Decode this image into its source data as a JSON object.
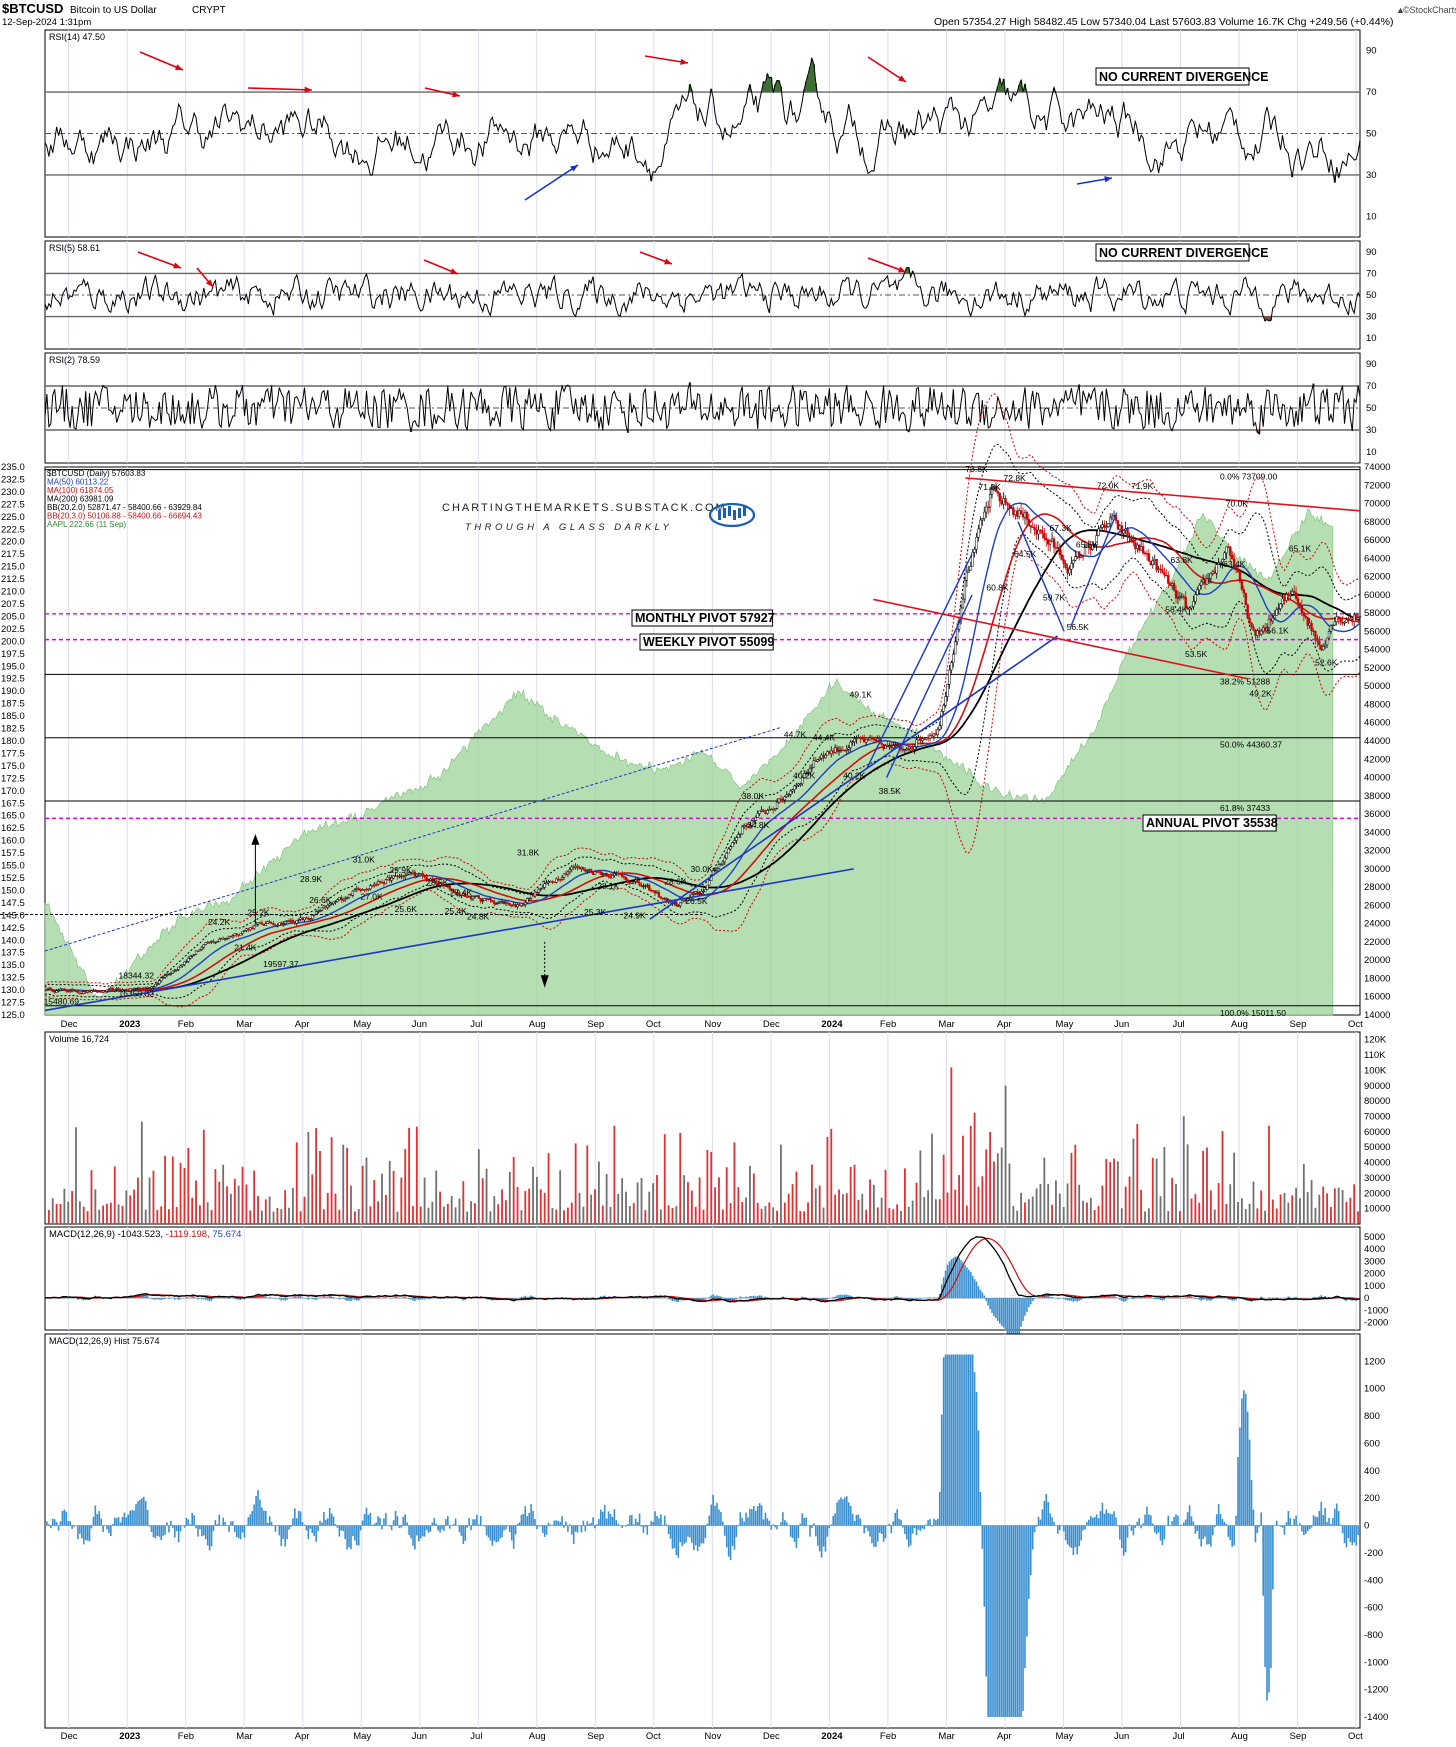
{
  "header": {
    "symbol": "$BTCUSD",
    "name": "Bitcoin to US Dollar",
    "exchange": "CRYPT",
    "datetime": "12-Sep-2024 1:31pm",
    "quote": "Open 57354.27  High 58482.45  Low 57340.04  Last 57603.83  Volume 16.7K  Chg +249.56 (+0.44%)",
    "quote_arrow": "▲",
    "brand": "©StockCharts.com"
  },
  "watermark": {
    "line1": "CHARTINGTHEMARKETS.SUBSTACK.COM",
    "line2": "THROUGH A GLASS DARKLY"
  },
  "colors": {
    "rsi_up_fill": "#3d6e34",
    "rsi_dn_fill": "#8c4a3e",
    "ma50": "#1f3fbf",
    "ma100": "#d01010",
    "ma200": "#000000",
    "aapl_area": "#9ed39a",
    "pivot": "#e000e0",
    "channel": "#e0101a",
    "trend_blue": "#1a36c8",
    "vol_up": "#e03030",
    "vol_dn": "#707070",
    "macd_hist": "#3a8fd0"
  },
  "panels": {
    "rsi14": {
      "label": "RSI(14) 47.50",
      "levels": [
        90,
        70,
        50,
        30,
        10
      ],
      "callout": "NO CURRENT DIVERGENCE"
    },
    "rsi5": {
      "label": "RSI(5) 58.61",
      "levels": [
        90,
        70,
        50,
        30,
        10
      ],
      "callout": "NO CURRENT DIVERGENCE"
    },
    "rsi2": {
      "label": "RSI(2) 78.59",
      "levels": [
        90,
        70,
        50,
        30,
        10
      ]
    },
    "price": {
      "legend": [
        {
          "text": "$BTCUSD (Daily) 57603.83",
          "color": "#000000"
        },
        {
          "text": "MA(50) 60113.22",
          "color": "#1f3fbf"
        },
        {
          "text": "MA(100) 61874.05",
          "color": "#d01010"
        },
        {
          "text": "MA(200) 63981.09",
          "color": "#000000"
        },
        {
          "text": "BB(20,2.0) 52871.47 - 58400.66 - 63929.84",
          "color": "#000000"
        },
        {
          "text": "BB(20,3.0) 50106.88 - 58400.66 - 66694.43",
          "color": "#d01010"
        },
        {
          "text": "AAPL 222.66 (11 Sep)",
          "color": "#2e8b2e"
        }
      ],
      "left_axis": [
        "235.0",
        "232.5",
        "230.0",
        "227.5",
        "225.0",
        "222.5",
        "220.0",
        "217.5",
        "215.0",
        "212.5",
        "210.0",
        "207.5",
        "205.0",
        "202.5",
        "200.0",
        "197.5",
        "195.0",
        "192.5",
        "190.0",
        "187.5",
        "185.0",
        "182.5",
        "180.0",
        "177.5",
        "175.0",
        "172.5",
        "170.0",
        "167.5",
        "165.0",
        "162.5",
        "160.0",
        "157.5",
        "155.0",
        "152.5",
        "150.0",
        "147.5",
        "145.0",
        "142.5",
        "140.0",
        "137.5",
        "135.0",
        "132.5",
        "130.0",
        "127.5",
        "125.0"
      ],
      "right_axis": [
        "74000",
        "72000",
        "70000",
        "68000",
        "66000",
        "64000",
        "62000",
        "60000",
        "58000",
        "56000",
        "54000",
        "52000",
        "50000",
        "48000",
        "46000",
        "44000",
        "42000",
        "40000",
        "38000",
        "36000",
        "34000",
        "32000",
        "30000",
        "28000",
        "26000",
        "24000",
        "22000",
        "20000",
        "18000",
        "16000",
        "14000"
      ],
      "pivots": [
        {
          "label": "MONTHLY PIVOT 57927",
          "value": 57927
        },
        {
          "label": "WEEKLY PIVOT 55099",
          "value": 55099
        },
        {
          "label": "ANNUAL PIVOT 35538",
          "value": 35538
        }
      ],
      "fibs": [
        {
          "label": "0.0% 73709.00",
          "value": 73709
        },
        {
          "label": "38.2% 51288",
          "value": 51288
        },
        {
          "label": "50.0% 44360.37",
          "value": 44360
        },
        {
          "label": "61.8% 37433",
          "value": 37433
        },
        {
          "label": "100.0% 15011.50",
          "value": 15011
        }
      ],
      "point_labels": [
        {
          "text": "73.8K",
          "t": 0.706,
          "v": 73800
        },
        {
          "text": "71.8K",
          "t": 0.716,
          "v": 71800
        },
        {
          "text": "72.8K",
          "t": 0.735,
          "v": 72800
        },
        {
          "text": "72.0K",
          "t": 0.806,
          "v": 72000
        },
        {
          "text": "71.9K",
          "t": 0.832,
          "v": 71900
        },
        {
          "text": "70.0K",
          "t": 0.904,
          "v": 70000
        },
        {
          "text": "67.3K",
          "t": 0.77,
          "v": 67300
        },
        {
          "text": "65.5K",
          "t": 0.79,
          "v": 65500
        },
        {
          "text": "64.5K",
          "t": 0.743,
          "v": 64500
        },
        {
          "text": "63.8K",
          "t": 0.862,
          "v": 63800
        },
        {
          "text": "63.4K",
          "t": 0.902,
          "v": 63400
        },
        {
          "text": "65.1K",
          "t": 0.952,
          "v": 65100
        },
        {
          "text": "60.8K",
          "t": 0.722,
          "v": 60800
        },
        {
          "text": "59.7K",
          "t": 0.765,
          "v": 59700
        },
        {
          "text": "58.4K",
          "t": 0.858,
          "v": 58400
        },
        {
          "text": "56.5K",
          "t": 0.783,
          "v": 56500
        },
        {
          "text": "56.1K",
          "t": 0.935,
          "v": 56100
        },
        {
          "text": "53.5K",
          "t": 0.873,
          "v": 53500
        },
        {
          "text": "52.6K",
          "t": 0.972,
          "v": 52600
        },
        {
          "text": "49.2K",
          "t": 0.922,
          "v": 49200
        },
        {
          "text": "49.1K",
          "t": 0.618,
          "v": 49100
        },
        {
          "text": "44.7K",
          "t": 0.568,
          "v": 44700
        },
        {
          "text": "44.4K",
          "t": 0.59,
          "v": 44400
        },
        {
          "text": "40.2K",
          "t": 0.575,
          "v": 40200
        },
        {
          "text": "40.2K",
          "t": 0.613,
          "v": 40200
        },
        {
          "text": "38.0K",
          "t": 0.536,
          "v": 38000
        },
        {
          "text": "38.5K",
          "t": 0.64,
          "v": 38500
        },
        {
          "text": "34.8K",
          "t": 0.54,
          "v": 34800
        },
        {
          "text": "31.8K",
          "t": 0.365,
          "v": 31800
        },
        {
          "text": "31.0K",
          "t": 0.24,
          "v": 31000
        },
        {
          "text": "30.0K",
          "t": 0.497,
          "v": 30000
        },
        {
          "text": "29.9K",
          "t": 0.268,
          "v": 29900
        },
        {
          "text": "28.9K",
          "t": 0.2,
          "v": 28900
        },
        {
          "text": "28.6K",
          "t": 0.477,
          "v": 28600
        },
        {
          "text": "28.5K",
          "t": 0.296,
          "v": 28500
        },
        {
          "text": "28.1K",
          "t": 0.426,
          "v": 28100
        },
        {
          "text": "27.4K",
          "t": 0.314,
          "v": 27400
        },
        {
          "text": "27.0K",
          "t": 0.246,
          "v": 27000
        },
        {
          "text": "26.6K",
          "t": 0.207,
          "v": 26600
        },
        {
          "text": "26.5K",
          "t": 0.493,
          "v": 26500
        },
        {
          "text": "25.6K",
          "t": 0.272,
          "v": 25600
        },
        {
          "text": "25.4K",
          "t": 0.31,
          "v": 25400
        },
        {
          "text": "25.3K",
          "t": 0.416,
          "v": 25300
        },
        {
          "text": "25.2K",
          "t": 0.16,
          "v": 25200
        },
        {
          "text": "24.9K",
          "t": 0.446,
          "v": 24900
        },
        {
          "text": "24.8K",
          "t": 0.327,
          "v": 24800
        },
        {
          "text": "24.2K",
          "t": 0.13,
          "v": 24200
        },
        {
          "text": "21.4K",
          "t": 0.15,
          "v": 21400
        },
        {
          "text": "19597.37",
          "t": 0.172,
          "v": 19600
        },
        {
          "text": "18344.32",
          "t": 0.062,
          "v": 18344
        },
        {
          "text": "16350.32",
          "t": 0.062,
          "v": 16350
        },
        {
          "text": "15480.69",
          "t": 0.005,
          "v": 15480
        }
      ]
    },
    "volume": {
      "label": "Volume 16,724",
      "axis": [
        "120K",
        "110K",
        "100K",
        "90000",
        "80000",
        "70000",
        "60000",
        "50000",
        "40000",
        "30000",
        "20000",
        "10000"
      ]
    },
    "macd": {
      "label_prefix": "MACD(12,26,9)",
      "macd_val": "-1043.523",
      "signal_val": "-1119.198",
      "hist_val": "75.674",
      "axis": [
        "5000",
        "4000",
        "3000",
        "2000",
        "1000",
        "0",
        "-1000",
        "-2000"
      ]
    },
    "hist": {
      "label": "MACD(12,26,9) Hist 75.674",
      "axis": [
        "1200",
        "1000",
        "800",
        "600",
        "400",
        "200",
        "0",
        "-200",
        "-400",
        "-600",
        "-800",
        "-1000",
        "-1200",
        "-1400"
      ]
    }
  },
  "x_axis": [
    "Dec",
    "2023",
    "Feb",
    "Mar",
    "Apr",
    "May",
    "Jun",
    "Jul",
    "Aug",
    "Sep",
    "Oct",
    "Nov",
    "Dec",
    "2024",
    "Feb",
    "Mar",
    "Apr",
    "May",
    "Jun",
    "Jul",
    "Aug",
    "Sep",
    "Oct"
  ],
  "chart_data": {
    "type": "line",
    "title": "$BTCUSD (Daily)",
    "x_range": [
      "Nov 2022",
      "Oct 2024"
    ],
    "y_right_range": [
      14000,
      74000
    ],
    "y_left_range": [
      125,
      235
    ],
    "series": [
      {
        "name": "$BTCUSD (Daily)",
        "t": [
          0.0,
          0.04,
          0.08,
          0.12,
          0.16,
          0.2,
          0.24,
          0.28,
          0.32,
          0.36,
          0.4,
          0.44,
          0.48,
          0.5,
          0.53,
          0.56,
          0.59,
          0.62,
          0.65,
          0.68,
          0.7,
          0.72,
          0.75,
          0.78,
          0.81,
          0.84,
          0.87,
          0.9,
          0.92,
          0.95,
          0.97,
          0.98
        ],
        "values": [
          16800,
          16500,
          17000,
          21500,
          23800,
          24500,
          28000,
          29500,
          27000,
          26000,
          30200,
          29200,
          26000,
          27500,
          34500,
          37500,
          42500,
          44000,
          43000,
          45500,
          62000,
          71000,
          68000,
          63000,
          68000,
          64000,
          58000,
          65500,
          55000,
          60500,
          54200,
          57603
        ]
      },
      {
        "name": "MA(50)",
        "value": 60113.22
      },
      {
        "name": "MA(100)",
        "value": 61874.05
      },
      {
        "name": "MA(200)",
        "value": 63981.09
      },
      {
        "name": "AAPL",
        "value": 222.66
      }
    ]
  }
}
